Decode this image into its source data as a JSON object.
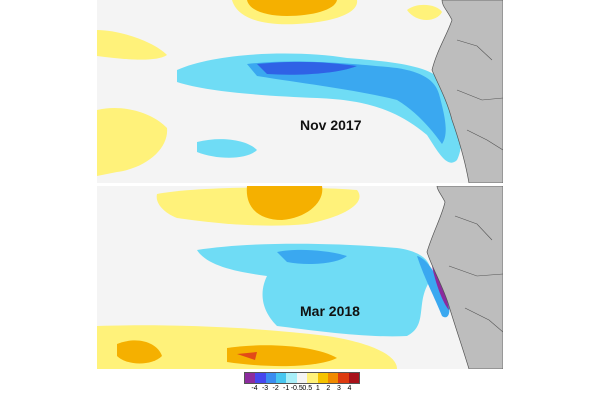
{
  "panels": [
    {
      "label": "Nov 2017"
    },
    {
      "label": "Mar 2018"
    }
  ],
  "legend": {
    "ticks": [
      "-4",
      "-3",
      "-2",
      "-1",
      "-0.5",
      "0.5",
      "1",
      "2",
      "3",
      "4"
    ],
    "colors": [
      "#8c2b9e",
      "#4646ee",
      "#3a8cf0",
      "#47c6f0",
      "#a8eef8",
      "#f4f4f4",
      "#fff27a",
      "#f5c300",
      "#f08a00",
      "#dd3a10",
      "#a8111a"
    ]
  },
  "colors": {
    "ocean_neutral": "#f4f4f4",
    "land": "#bdbdbd",
    "cold_light": "#6fdcf5",
    "cold_mid": "#3aa8f0",
    "cold_strong": "#2f62e6",
    "warm_light": "#fff27a",
    "warm_mid": "#f5b000",
    "warm_strong": "#e24a18"
  }
}
